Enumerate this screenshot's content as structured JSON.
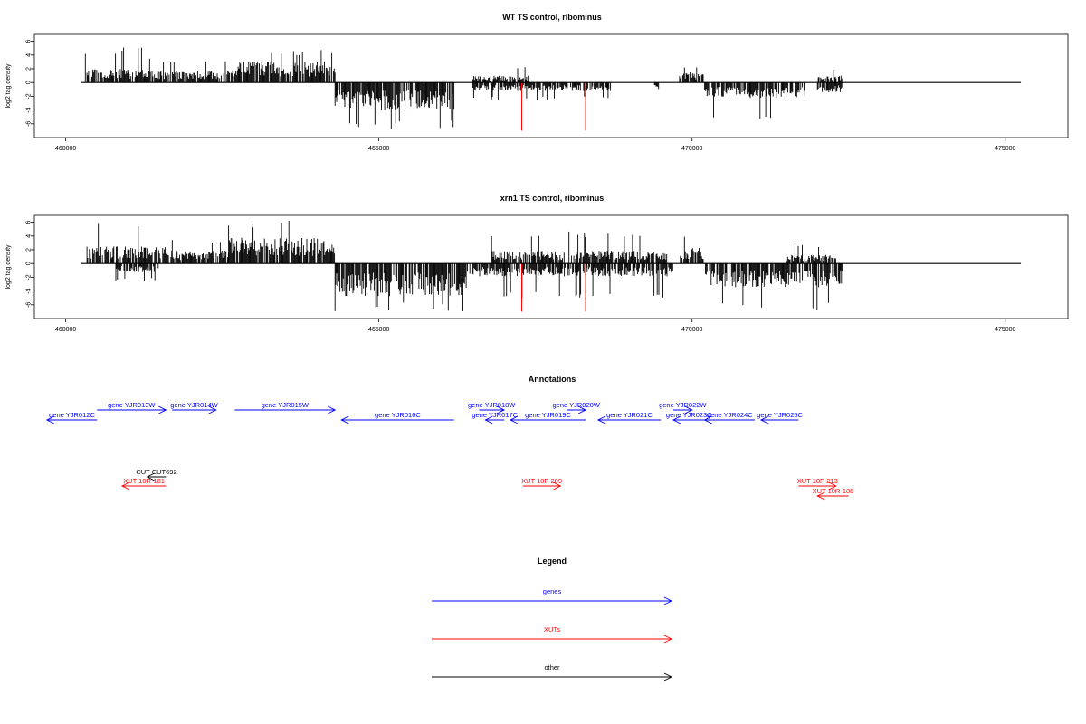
{
  "colors": {
    "genes": "#0000ff",
    "xuts": "#ff0000",
    "other": "#000000",
    "highlight": "#ff0000",
    "bars": "#000000"
  },
  "chart_data": [
    {
      "type": "bar",
      "title": "WT TS control, ribominus",
      "xlabel": "",
      "ylabel": "log2 tag density",
      "xlim": [
        459500,
        476000
      ],
      "ylim": [
        -8,
        7
      ],
      "xticks": [
        460000,
        465000,
        470000,
        475000
      ],
      "yticks": [
        -6,
        -4,
        -2,
        0,
        2,
        4,
        6
      ],
      "baseline": {
        "x": [
          460250,
          475250
        ],
        "y": 0
      },
      "highlight_bars": [
        {
          "x": 467280,
          "y": -7
        },
        {
          "x": 468300,
          "y": -7
        }
      ],
      "profile": [
        {
          "from": 460300,
          "to": 461300,
          "mean": 1.6,
          "max": 5.2
        },
        {
          "from": 461300,
          "to": 462700,
          "mean": 1.4,
          "max": 3.5
        },
        {
          "from": 462700,
          "to": 464300,
          "mean": 2.5,
          "max": 4.8
        },
        {
          "from": 464300,
          "to": 466200,
          "mean": -3.2,
          "max": -6.8
        },
        {
          "from": 466500,
          "to": 468700,
          "mean": -1.0,
          "max": -2.5
        },
        {
          "from": 466500,
          "to": 467400,
          "mean": 0.8,
          "max": 2.6
        },
        {
          "from": 469400,
          "to": 469500,
          "mean": -0.8,
          "max": -1.5
        },
        {
          "from": 469800,
          "to": 470200,
          "mean": 1.2,
          "max": 2.6
        },
        {
          "from": 470200,
          "to": 471800,
          "mean": -1.8,
          "max": -6.0
        },
        {
          "from": 472000,
          "to": 472400,
          "mean": -1.2,
          "max": -3.8
        },
        {
          "from": 472000,
          "to": 472400,
          "mean": 0.8,
          "max": 2.0
        }
      ]
    },
    {
      "type": "bar",
      "title": "xrn1 TS control, ribominus",
      "xlabel": "",
      "ylabel": "log2 tag density",
      "xlim": [
        459500,
        476000
      ],
      "ylim": [
        -8,
        7
      ],
      "xticks": [
        460000,
        465000,
        470000,
        475000
      ],
      "yticks": [
        -6,
        -4,
        -2,
        0,
        2,
        4,
        6
      ],
      "baseline": {
        "x": [
          460250,
          475250
        ],
        "y": 0
      },
      "highlight_bars": [
        {
          "x": 467280,
          "y": -7
        },
        {
          "x": 468300,
          "y": -7
        }
      ],
      "profile": [
        {
          "from": 460300,
          "to": 461700,
          "mean": 2.0,
          "max": 6.2
        },
        {
          "from": 460800,
          "to": 461500,
          "mean": -1.0,
          "max": -2.6
        },
        {
          "from": 461700,
          "to": 462600,
          "mean": 1.5,
          "max": 3.6
        },
        {
          "from": 462600,
          "to": 464300,
          "mean": 3.0,
          "max": 6.5
        },
        {
          "from": 464300,
          "to": 466400,
          "mean": -3.8,
          "max": -7.0
        },
        {
          "from": 466400,
          "to": 469700,
          "mean": -1.5,
          "max": -5.0
        },
        {
          "from": 466800,
          "to": 469600,
          "mean": 1.5,
          "max": 4.8
        },
        {
          "from": 469800,
          "to": 470200,
          "mean": 1.8,
          "max": 4.2
        },
        {
          "from": 470200,
          "to": 472400,
          "mean": -2.8,
          "max": -7.0
        },
        {
          "from": 471500,
          "to": 472300,
          "mean": 1.0,
          "max": 2.8
        }
      ]
    }
  ],
  "annotations": {
    "title": "Annotations",
    "genes": [
      {
        "label": "gene YJR012C",
        "from": 460500,
        "to": 459700,
        "row": 2
      },
      {
        "label": "gene YJR013W",
        "from": 460500,
        "to": 461600,
        "row": 1
      },
      {
        "label": "gene YJR014W",
        "from": 461700,
        "to": 462400,
        "row": 1
      },
      {
        "label": "gene YJR015W",
        "from": 462700,
        "to": 464300,
        "row": 1
      },
      {
        "label": "gene YJR016C",
        "from": 466200,
        "to": 464400,
        "row": 2
      },
      {
        "label": "gene YJR017C",
        "from": 467000,
        "to": 466700,
        "row": 2
      },
      {
        "label": "gene YJR018W",
        "from": 466600,
        "to": 467000,
        "row": 1
      },
      {
        "label": "gene YJR019C",
        "from": 468300,
        "to": 467100,
        "row": 2
      },
      {
        "label": "gene YJR020W",
        "from": 468000,
        "to": 468300,
        "row": 1
      },
      {
        "label": "gene YJR021C",
        "from": 469500,
        "to": 468500,
        "row": 2
      },
      {
        "label": "gene YJR022W",
        "from": 469700,
        "to": 470000,
        "row": 1
      },
      {
        "label": "gene YJR023C",
        "from": 470200,
        "to": 469700,
        "row": 2
      },
      {
        "label": "gene YJR024C",
        "from": 471000,
        "to": 470200,
        "row": 2
      },
      {
        "label": "gene YJR025C",
        "from": 471700,
        "to": 471100,
        "row": 2
      }
    ],
    "xuts": [
      {
        "label": "XUT 10R-181",
        "from": 461600,
        "to": 460900,
        "row": 3
      },
      {
        "label": "XUT 10F-209",
        "from": 467300,
        "to": 467900,
        "row": 3
      },
      {
        "label": "XUT 10F-213",
        "from": 471700,
        "to": 472300,
        "row": 3
      },
      {
        "label": "XUT 10R-186",
        "from": 472500,
        "to": 472000,
        "row": 4
      }
    ],
    "other": [
      {
        "label": "CUT CUT692",
        "from": 461600,
        "to": 461300,
        "row": 3
      }
    ]
  },
  "legend": {
    "title": "Legend",
    "items": [
      {
        "label": "genes",
        "color": "#0000ff"
      },
      {
        "label": "XUTs",
        "color": "#ff0000"
      },
      {
        "label": "other",
        "color": "#000000"
      }
    ]
  }
}
